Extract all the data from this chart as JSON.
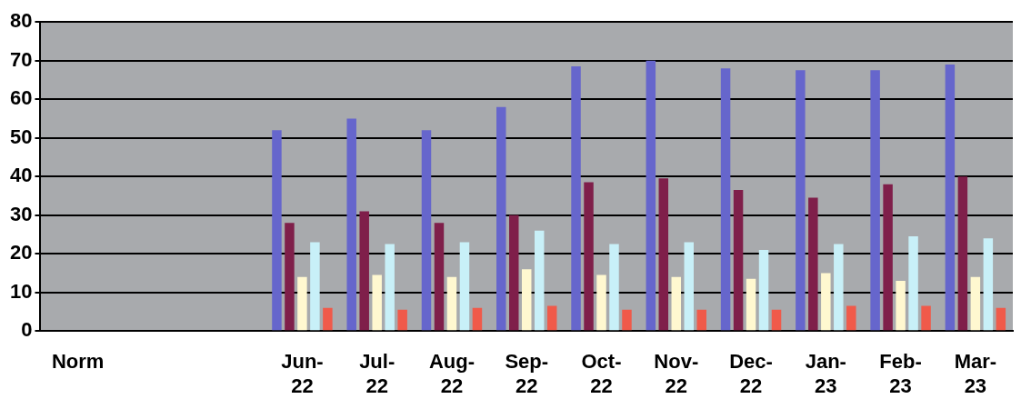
{
  "chart_data": {
    "type": "bar",
    "categories": [
      "Norm",
      null,
      null,
      "Jun-22",
      "Jul-22",
      "Aug-22",
      "Sep-22",
      "Oct-22",
      "Nov-22",
      "Dec-22",
      "Jan-23",
      "Feb-23",
      "Mar-23"
    ],
    "series": [
      {
        "color": "#6666cc",
        "values": [
          null,
          null,
          null,
          52,
          55,
          52,
          58,
          68.5,
          70,
          68,
          67.5,
          67.5,
          69
        ]
      },
      {
        "color": "#7f1f4a",
        "values": [
          null,
          null,
          null,
          28,
          31,
          28,
          30,
          38.5,
          39.5,
          36.5,
          34.5,
          38,
          40
        ]
      },
      {
        "color": "#fff8d0",
        "values": [
          null,
          null,
          null,
          14,
          14.5,
          14,
          16,
          14.5,
          14,
          13.5,
          15,
          13,
          14
        ]
      },
      {
        "color": "#c8f0f8",
        "values": [
          null,
          null,
          null,
          23,
          22.5,
          23,
          26,
          22.5,
          23,
          21,
          22.5,
          24.5,
          24
        ]
      },
      {
        "color": "#f05a4a",
        "values": [
          null,
          null,
          null,
          6,
          5.5,
          6,
          6.5,
          5.5,
          5.5,
          5.5,
          6.5,
          6.5,
          6
        ]
      }
    ],
    "ylim": [
      0,
      80
    ],
    "yticks": [
      0,
      10,
      20,
      30,
      40,
      50,
      60,
      70,
      80
    ],
    "grid": "y",
    "legend": false
  }
}
